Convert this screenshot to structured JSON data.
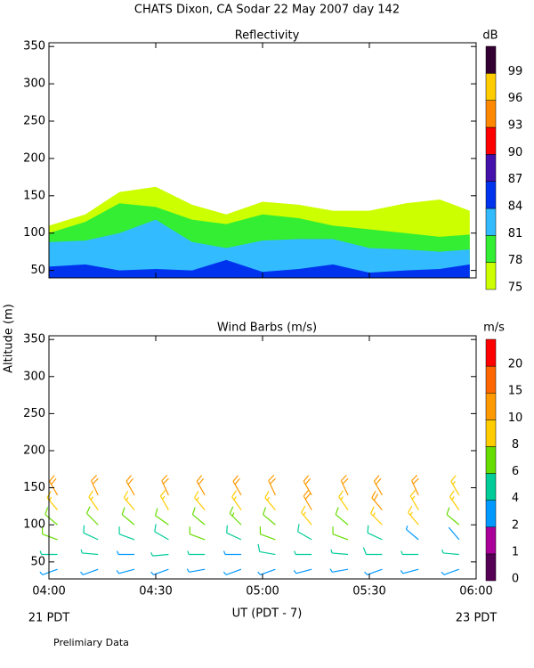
{
  "title": "CHATS Dixon, CA  Sodar  22 May 2007  day 142",
  "ylabel": "Altitude (m)",
  "footnote": "Prelimiary Data",
  "chart_data": [
    {
      "type": "filled-contour",
      "title": "Reflectivity",
      "colorbar_label": "dB",
      "x": [
        4.0,
        4.17,
        4.33,
        4.5,
        4.67,
        4.83,
        5.0,
        5.17,
        5.33,
        5.5,
        5.67,
        5.83,
        5.97
      ],
      "layer_tops": [
        [
          110,
          125,
          155,
          162,
          138,
          125,
          142,
          138,
          130,
          130,
          140,
          145,
          130
        ],
        [
          100,
          115,
          140,
          135,
          118,
          112,
          125,
          120,
          110,
          105,
          100,
          95,
          98
        ],
        [
          88,
          90,
          100,
          118,
          88,
          80,
          90,
          92,
          92,
          80,
          78,
          75,
          78
        ],
        [
          55,
          58,
          50,
          52,
          50,
          64,
          48,
          52,
          58,
          47,
          50,
          52,
          58
        ]
      ],
      "levels": [
        75,
        78,
        81,
        84,
        87,
        90,
        93,
        96,
        99
      ],
      "colors": [
        "#ccff00",
        "#33ee33",
        "#33bbff",
        "#0033ee",
        "#4411aa",
        "#ff0000",
        "#ff8800",
        "#ffcc00",
        "#330033"
      ],
      "xlim": [
        4,
        6
      ],
      "xticks": [
        4,
        4.5,
        5,
        5.5,
        6
      ],
      "ylim": [
        40,
        355
      ],
      "yticks": [
        50,
        100,
        150,
        200,
        250,
        300,
        350
      ]
    },
    {
      "type": "wind-barbs",
      "title": "Wind Barbs (m/s)",
      "colorbar_label": "m/s",
      "xlabel": "UT  (PDT - 7)",
      "x_start_note": "21 PDT",
      "x_end_note": "23 PDT",
      "x": [
        4.04,
        4.23,
        4.4,
        4.56,
        4.73,
        4.9,
        5.06,
        5.23,
        5.4,
        5.56,
        5.73,
        5.92,
        4.04,
        4.23,
        4.4,
        4.56,
        4.73,
        4.9,
        5.06,
        5.23,
        5.4,
        5.56,
        5.73,
        5.92,
        4.04,
        4.23,
        4.4,
        4.56,
        4.73,
        4.9,
        5.06,
        5.23,
        5.4,
        5.56,
        5.73,
        5.92,
        4.04,
        4.23,
        4.4,
        4.56,
        4.73,
        4.9,
        5.06,
        5.23,
        5.4,
        5.56,
        5.73,
        5.92,
        4.04,
        4.23,
        4.4,
        4.56,
        4.73,
        4.9,
        5.06,
        5.23,
        5.4,
        5.56,
        5.73,
        5.92,
        4.04,
        4.23,
        4.4,
        4.56,
        4.73,
        4.9,
        5.06,
        5.23,
        5.4,
        5.56,
        5.73,
        5.92
      ],
      "y": [
        40,
        40,
        40,
        40,
        40,
        40,
        40,
        40,
        40,
        40,
        40,
        40,
        60,
        60,
        60,
        60,
        60,
        60,
        60,
        60,
        60,
        60,
        60,
        60,
        80,
        80,
        80,
        80,
        80,
        80,
        80,
        80,
        80,
        80,
        80,
        80,
        100,
        100,
        100,
        100,
        100,
        100,
        100,
        100,
        100,
        100,
        100,
        100,
        120,
        120,
        120,
        120,
        120,
        120,
        120,
        120,
        120,
        120,
        120,
        120,
        140,
        140,
        140,
        140,
        140,
        140,
        140,
        140,
        140,
        140,
        140,
        140
      ],
      "speed": [
        3,
        2.5,
        3,
        3.5,
        3,
        3,
        2.5,
        3,
        3,
        3,
        2.5,
        2.5,
        4,
        4,
        3,
        4.5,
        4,
        3.5,
        5,
        4,
        4,
        5,
        4,
        4.5,
        6,
        5.5,
        5,
        5,
        6,
        5.5,
        6,
        5,
        6,
        5.5,
        3.5,
        2,
        7,
        6.5,
        6,
        6,
        7,
        7.5,
        7,
        8,
        7,
        8,
        8,
        6,
        8.5,
        9,
        8,
        9,
        9.5,
        8,
        9,
        10,
        9.5,
        10,
        9,
        8,
        10,
        11,
        10,
        12,
        11,
        10,
        10.5,
        11,
        12,
        11,
        10,
        9
      ],
      "direction": [
        250,
        250,
        255,
        250,
        260,
        250,
        250,
        255,
        260,
        250,
        255,
        250,
        270,
        275,
        270,
        265,
        270,
        270,
        280,
        270,
        275,
        270,
        270,
        275,
        290,
        295,
        290,
        300,
        290,
        295,
        290,
        300,
        290,
        295,
        310,
        320,
        310,
        315,
        310,
        305,
        310,
        315,
        310,
        320,
        310,
        315,
        320,
        310,
        320,
        325,
        320,
        330,
        320,
        325,
        320,
        330,
        325,
        320,
        330,
        325,
        330,
        335,
        330,
        335,
        330,
        330,
        335,
        330,
        335,
        330,
        335,
        330
      ],
      "levels": [
        0,
        1,
        2,
        4,
        6,
        8,
        10,
        15,
        20
      ],
      "colors": [
        "#550055",
        "#aa0099",
        "#0099ff",
        "#00cc99",
        "#66dd00",
        "#ffcc00",
        "#ff9900",
        "#ff6600",
        "#ff0000"
      ],
      "xlim": [
        4,
        6
      ],
      "xticks": [
        {
          "value": 4,
          "label": "04:00"
        },
        {
          "value": 4.5,
          "label": "04:30"
        },
        {
          "value": 5,
          "label": "05:00"
        },
        {
          "value": 5.5,
          "label": "05:30"
        },
        {
          "value": 6,
          "label": "06:00"
        }
      ],
      "ylim": [
        27,
        355
      ],
      "yticks": [
        50,
        100,
        150,
        200,
        250,
        300,
        350
      ]
    }
  ]
}
